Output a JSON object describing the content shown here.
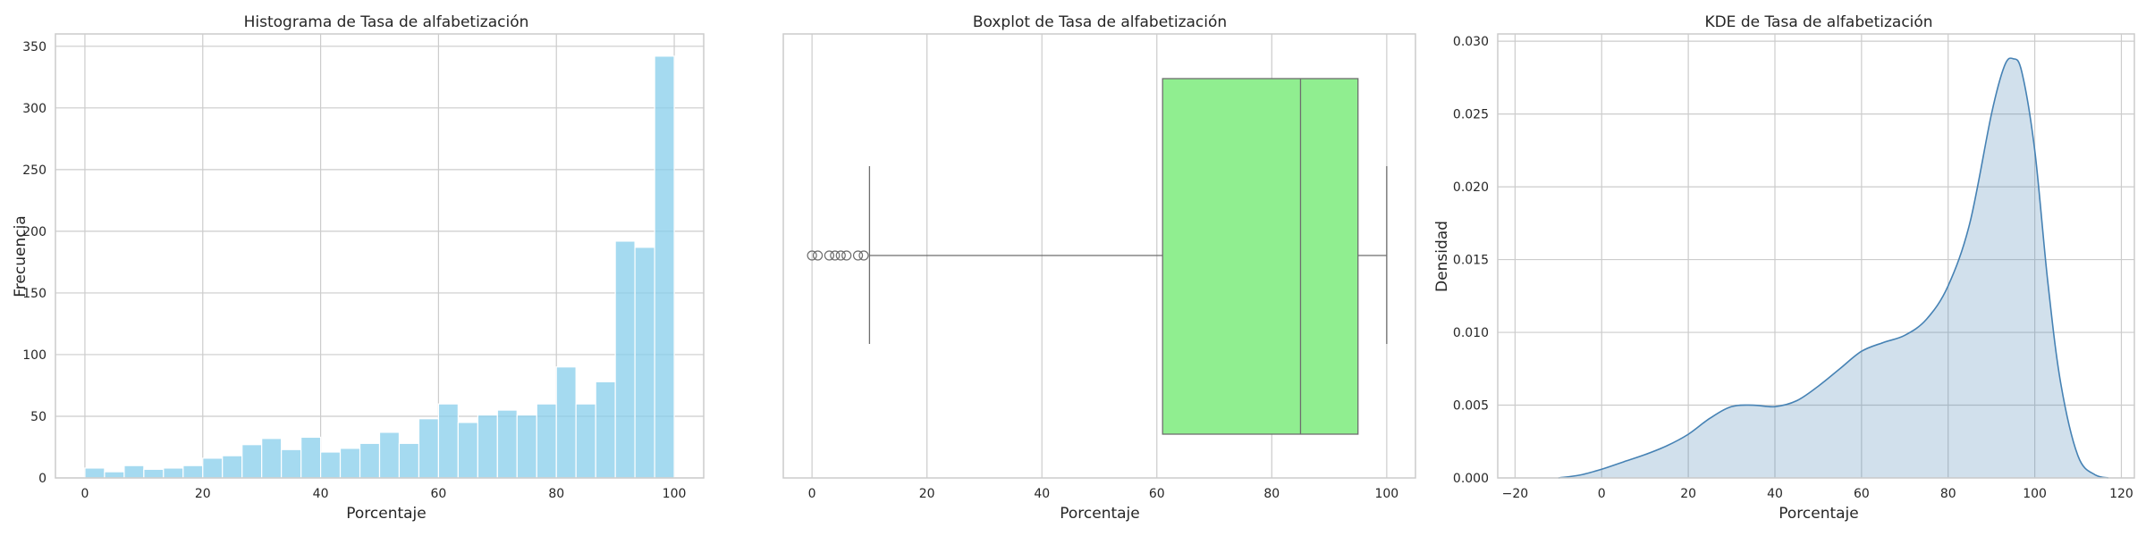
{
  "chart_data": [
    {
      "type": "bar",
      "title": "Histograma de Tasa de alfabetización",
      "xlabel": "Porcentaje",
      "ylabel": "Frecuencia",
      "xlim": [
        -5,
        105
      ],
      "ylim": [
        0,
        360
      ],
      "xticks": [
        0,
        20,
        40,
        60,
        80,
        100
      ],
      "yticks": [
        0,
        50,
        100,
        150,
        200,
        250,
        300,
        350
      ],
      "grid": true,
      "color": "#87ceeb",
      "bin_edges": [
        0,
        3.33,
        6.67,
        10,
        13.33,
        16.67,
        20,
        23.33,
        26.67,
        30,
        33.33,
        36.67,
        40,
        43.33,
        46.67,
        50,
        53.33,
        56.67,
        60,
        63.33,
        66.67,
        70,
        73.33,
        76.67,
        80,
        83.33,
        86.67,
        90,
        93.33,
        96.67,
        100
      ],
      "values": [
        8,
        5,
        10,
        7,
        8,
        10,
        16,
        18,
        27,
        32,
        23,
        33,
        21,
        24,
        28,
        37,
        28,
        48,
        60,
        45,
        51,
        55,
        51,
        60,
        90,
        60,
        78,
        192,
        187,
        342
      ]
    },
    {
      "type": "box",
      "title": "Boxplot de Tasa de alfabetización",
      "xlabel": "Porcentaje",
      "xlim": [
        -5,
        105
      ],
      "xticks": [
        0,
        20,
        40,
        60,
        80,
        100
      ],
      "grid": true,
      "color": "#90ee90",
      "whisker_low": 10,
      "q1": 61,
      "median": 85,
      "q3": 95,
      "whisker_high": 100,
      "outliers": [
        0,
        1,
        3,
        4,
        5,
        6,
        8,
        9
      ]
    },
    {
      "type": "area",
      "title": "KDE de Tasa de alfabetización",
      "xlabel": "Porcentaje",
      "ylabel": "Densidad",
      "xlim": [
        -24,
        123
      ],
      "ylim": [
        0,
        0.0305
      ],
      "xticks": [
        -20,
        0,
        20,
        40,
        60,
        80,
        100,
        120
      ],
      "yticks": [
        "0.000",
        "0.005",
        "0.010",
        "0.015",
        "0.020",
        "0.025",
        "0.030"
      ],
      "grid": true,
      "color": "#4682b4",
      "x": [
        -10,
        -5,
        0,
        5,
        10,
        15,
        20,
        25,
        30,
        35,
        40,
        45,
        50,
        55,
        60,
        65,
        70,
        75,
        80,
        85,
        90,
        93,
        95,
        97,
        100,
        103,
        106,
        110,
        114,
        117
      ],
      "y": [
        0,
        0.0002,
        0.0006,
        0.0011,
        0.0016,
        0.0022,
        0.003,
        0.0041,
        0.0049,
        0.005,
        0.0049,
        0.0053,
        0.0063,
        0.0075,
        0.0087,
        0.0093,
        0.0098,
        0.0109,
        0.0132,
        0.0175,
        0.025,
        0.0283,
        0.0288,
        0.0279,
        0.0225,
        0.0135,
        0.0065,
        0.0015,
        0.0002,
        0
      ]
    }
  ]
}
